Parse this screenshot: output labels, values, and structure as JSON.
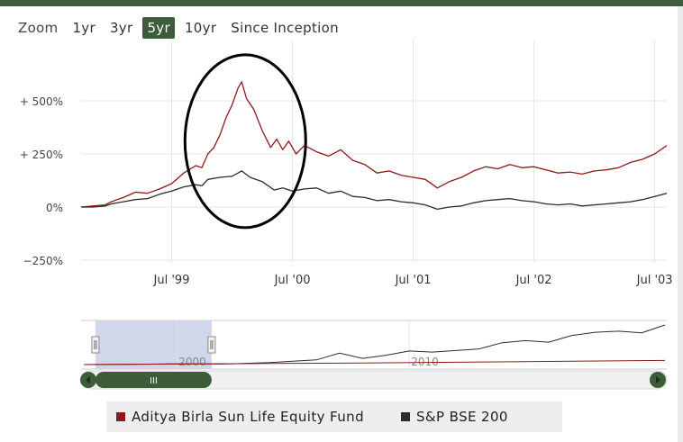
{
  "zoom": {
    "label": "Zoom",
    "buttons": [
      "1yr",
      "3yr",
      "5yr",
      "10yr",
      "Since Inception"
    ],
    "active": "5yr"
  },
  "colors": {
    "fund": "#8b1a1a",
    "index": "#2b2b2b",
    "accent": "#3d5c3a",
    "navigator_window": "#c8d0e8"
  },
  "chart_data": {
    "type": "line",
    "y_unit": "%",
    "yticks": [
      -250,
      0,
      250,
      500
    ],
    "ytick_labels": [
      "−250%",
      "0%",
      "+ 250%",
      "+ 500%"
    ],
    "ylim": [
      -250,
      650
    ],
    "x_range": [
      1998.75,
      2003.6
    ],
    "xtick_labels": [
      {
        "label": "Jul '99",
        "x": 1999.5
      },
      {
        "label": "Jul '00",
        "x": 2000.5
      },
      {
        "label": "Jul '01",
        "x": 2001.5
      },
      {
        "label": "Jul '02",
        "x": 2002.5
      },
      {
        "label": "Jul '03",
        "x": 2003.5
      }
    ],
    "grid": true,
    "legend_position": "bottom",
    "annotation": "circle around the 1999–2000 peak",
    "series": [
      {
        "name": "Aditya Birla Sun Life Equity Fund",
        "color": "#8b1a1a",
        "points": [
          [
            1998.75,
            0
          ],
          [
            1998.85,
            5
          ],
          [
            1998.95,
            10
          ],
          [
            1999.0,
            25
          ],
          [
            1999.1,
            45
          ],
          [
            1999.2,
            70
          ],
          [
            1999.3,
            65
          ],
          [
            1999.4,
            85
          ],
          [
            1999.5,
            110
          ],
          [
            1999.6,
            160
          ],
          [
            1999.7,
            195
          ],
          [
            1999.75,
            185
          ],
          [
            1999.8,
            250
          ],
          [
            1999.85,
            280
          ],
          [
            1999.9,
            340
          ],
          [
            1999.95,
            420
          ],
          [
            2000.0,
            480
          ],
          [
            2000.05,
            560
          ],
          [
            2000.08,
            590
          ],
          [
            2000.12,
            510
          ],
          [
            2000.18,
            460
          ],
          [
            2000.25,
            360
          ],
          [
            2000.32,
            280
          ],
          [
            2000.37,
            320
          ],
          [
            2000.42,
            270
          ],
          [
            2000.47,
            310
          ],
          [
            2000.53,
            250
          ],
          [
            2000.6,
            290
          ],
          [
            2000.7,
            260
          ],
          [
            2000.8,
            240
          ],
          [
            2000.9,
            270
          ],
          [
            2001.0,
            220
          ],
          [
            2001.1,
            200
          ],
          [
            2001.2,
            160
          ],
          [
            2001.3,
            170
          ],
          [
            2001.4,
            150
          ],
          [
            2001.5,
            140
          ],
          [
            2001.6,
            130
          ],
          [
            2001.7,
            90
          ],
          [
            2001.8,
            120
          ],
          [
            2001.9,
            140
          ],
          [
            2002.0,
            170
          ],
          [
            2002.1,
            190
          ],
          [
            2002.2,
            180
          ],
          [
            2002.3,
            200
          ],
          [
            2002.4,
            185
          ],
          [
            2002.5,
            190
          ],
          [
            2002.6,
            175
          ],
          [
            2002.7,
            160
          ],
          [
            2002.8,
            165
          ],
          [
            2002.9,
            155
          ],
          [
            2003.0,
            170
          ],
          [
            2003.1,
            175
          ],
          [
            2003.2,
            185
          ],
          [
            2003.3,
            210
          ],
          [
            2003.4,
            225
          ],
          [
            2003.5,
            250
          ],
          [
            2003.6,
            290
          ]
        ]
      },
      {
        "name": "S&P BSE 200",
        "color": "#2b2b2b",
        "points": [
          [
            1998.75,
            0
          ],
          [
            1998.85,
            0
          ],
          [
            1998.95,
            5
          ],
          [
            1999.0,
            15
          ],
          [
            1999.1,
            25
          ],
          [
            1999.2,
            35
          ],
          [
            1999.3,
            40
          ],
          [
            1999.4,
            60
          ],
          [
            1999.5,
            75
          ],
          [
            1999.6,
            95
          ],
          [
            1999.7,
            105
          ],
          [
            1999.75,
            100
          ],
          [
            1999.8,
            130
          ],
          [
            1999.9,
            140
          ],
          [
            2000.0,
            145
          ],
          [
            2000.08,
            170
          ],
          [
            2000.15,
            140
          ],
          [
            2000.25,
            120
          ],
          [
            2000.35,
            80
          ],
          [
            2000.42,
            90
          ],
          [
            2000.5,
            75
          ],
          [
            2000.6,
            85
          ],
          [
            2000.7,
            90
          ],
          [
            2000.8,
            65
          ],
          [
            2000.9,
            75
          ],
          [
            2001.0,
            50
          ],
          [
            2001.1,
            45
          ],
          [
            2001.2,
            30
          ],
          [
            2001.3,
            35
          ],
          [
            2001.4,
            25
          ],
          [
            2001.5,
            20
          ],
          [
            2001.6,
            10
          ],
          [
            2001.7,
            -10
          ],
          [
            2001.8,
            0
          ],
          [
            2001.9,
            5
          ],
          [
            2002.0,
            20
          ],
          [
            2002.1,
            30
          ],
          [
            2002.2,
            35
          ],
          [
            2002.3,
            40
          ],
          [
            2002.4,
            30
          ],
          [
            2002.5,
            25
          ],
          [
            2002.6,
            15
          ],
          [
            2002.7,
            10
          ],
          [
            2002.8,
            15
          ],
          [
            2002.9,
            5
          ],
          [
            2003.0,
            10
          ],
          [
            2003.1,
            15
          ],
          [
            2003.2,
            20
          ],
          [
            2003.3,
            25
          ],
          [
            2003.4,
            35
          ],
          [
            2003.5,
            50
          ],
          [
            2003.6,
            65
          ]
        ]
      }
    ]
  },
  "navigator": {
    "axis_labels": [
      {
        "label": "2000",
        "year": 2000
      },
      {
        "label": "2010",
        "year": 2010
      }
    ],
    "year_range": [
      1996,
      2021
    ],
    "selection_years": [
      1996.5,
      2001.5
    ],
    "index_series": [
      [
        1996,
        0
      ],
      [
        1998,
        5
      ],
      [
        2000,
        15
      ],
      [
        2002,
        10
      ],
      [
        2004,
        40
      ],
      [
        2006,
        90
      ],
      [
        2007,
        220
      ],
      [
        2008,
        120
      ],
      [
        2009,
        180
      ],
      [
        2010,
        260
      ],
      [
        2011,
        240
      ],
      [
        2012,
        270
      ],
      [
        2013,
        300
      ],
      [
        2014,
        420
      ],
      [
        2015,
        460
      ],
      [
        2016,
        430
      ],
      [
        2017,
        560
      ],
      [
        2018,
        620
      ],
      [
        2019,
        640
      ],
      [
        2020,
        610
      ],
      [
        2021,
        760
      ]
    ],
    "fund_series": [
      [
        1996,
        0
      ],
      [
        2000,
        10
      ],
      [
        2004,
        20
      ],
      [
        2008,
        30
      ],
      [
        2012,
        45
      ],
      [
        2016,
        60
      ],
      [
        2021,
        80
      ]
    ],
    "scrollbar_grip": "III"
  },
  "legend": {
    "items": [
      {
        "label": "Aditya Birla Sun Life Equity Fund",
        "color": "#8b1a1a"
      },
      {
        "label": "S&P BSE 200",
        "color": "#2b2b2b"
      }
    ]
  }
}
